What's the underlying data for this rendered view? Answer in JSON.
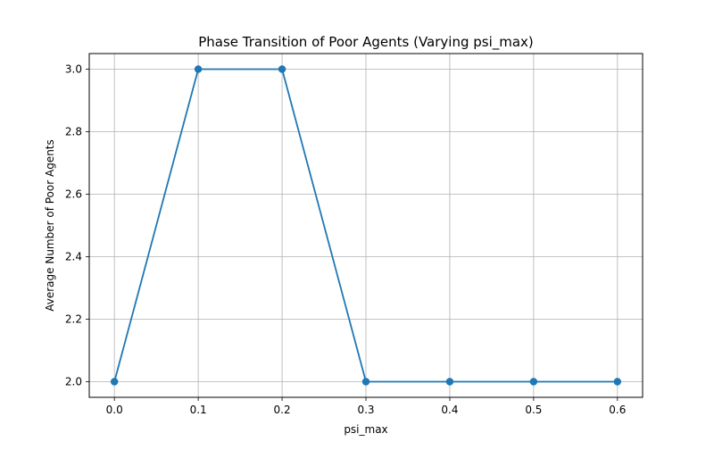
{
  "chart_data": {
    "type": "line",
    "title": "Phase Transition of Poor Agents (Varying psi_max)",
    "xlabel": "psi_max",
    "ylabel": "Average Number of Poor Agents",
    "x": [
      0.0,
      0.1,
      0.2,
      0.3,
      0.4,
      0.5,
      0.6
    ],
    "series": [
      {
        "values": [
          2.0,
          3.0,
          3.0,
          2.0,
          2.0,
          2.0,
          2.0
        ],
        "color": "#1f77b4",
        "marker": "circle"
      }
    ],
    "xlim": [
      -0.03,
      0.63
    ],
    "ylim": [
      1.95,
      3.05
    ],
    "xticks": [
      0.0,
      0.1,
      0.2,
      0.3,
      0.4,
      0.5,
      0.6
    ],
    "xtick_labels": [
      "0.0",
      "0.1",
      "0.2",
      "0.3",
      "0.4",
      "0.5",
      "0.6"
    ],
    "yticks": [
      2.0,
      2.2,
      2.4,
      2.6,
      2.8,
      3.0
    ],
    "ytick_labels": [
      "2.0",
      "2.2",
      "2.4",
      "2.6",
      "2.8",
      "3.0"
    ],
    "grid": true,
    "legend": false
  }
}
